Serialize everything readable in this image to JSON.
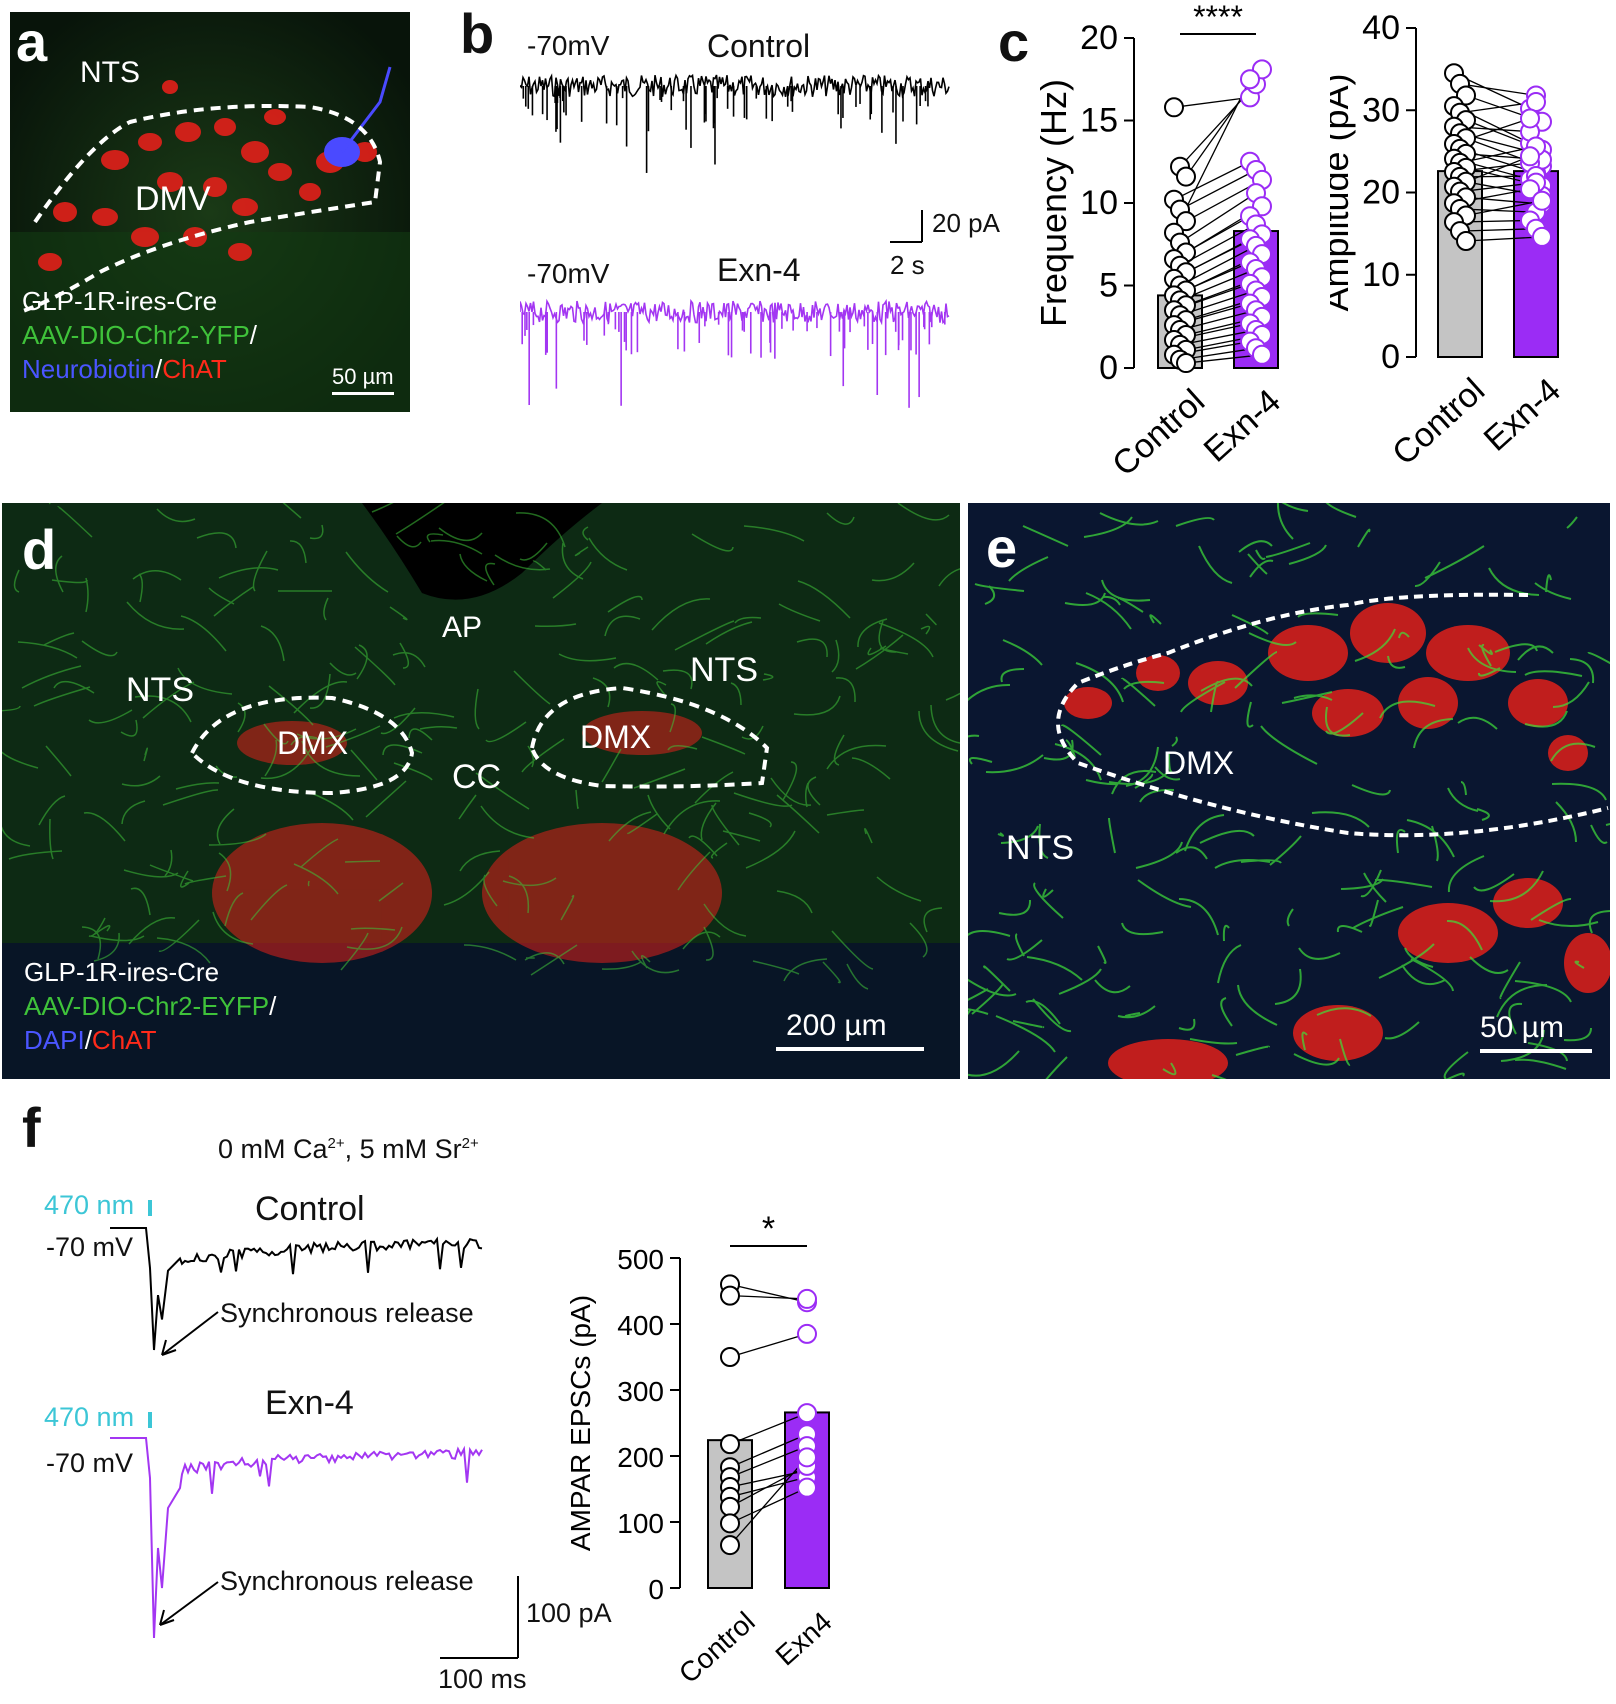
{
  "panels": {
    "a": "a",
    "b": "b",
    "c": "c",
    "d": "d",
    "e": "e",
    "f": "f"
  },
  "panel_a": {
    "labels": {
      "nts": "NTS",
      "dmv": "DMV"
    },
    "legend": {
      "line1": "GLP-1R-ires-Cre",
      "line2": "AAV-DIO-Chr2-YFP",
      "slash": "/",
      "line3a": "Neurobiotin",
      "line3sep": "/",
      "line3b": "ChAT"
    },
    "scalebar": "50 µm"
  },
  "panel_b": {
    "control_title": "Control",
    "exn_title": "Exn-4",
    "holding_control": "-70mV",
    "holding_exn": "-70mV",
    "scale_y": "20 pA",
    "scale_x": "2 s",
    "colors": {
      "control": "#000000",
      "exn": "#a336f2"
    }
  },
  "chart_data": [
    {
      "type": "bar",
      "panel": "c-left",
      "categories": [
        "Control",
        "Exn-4"
      ],
      "values": [
        4.4,
        8.3
      ],
      "ylabel": "Frequency (Hz)",
      "ylim": [
        0,
        20
      ],
      "yticks": [
        "0",
        "5",
        "10",
        "15",
        "20"
      ],
      "significance": "****",
      "paired_points": {
        "control": [
          15.8,
          12.2,
          11.6,
          10.2,
          9.6,
          8.9,
          8.2,
          7.6,
          7.0,
          6.6,
          6.2,
          5.8,
          5.4,
          5.0,
          4.7,
          4.4,
          4.1,
          3.8,
          3.5,
          3.2,
          2.9,
          2.6,
          2.3,
          2.0,
          1.7,
          1.4,
          1.1,
          0.8,
          0.5,
          0.3
        ],
        "exn": [
          16.4,
          17.2,
          18.1,
          12.5,
          12.0,
          11.4,
          17.5,
          10.6,
          9.8,
          9.2,
          8.7,
          8.1,
          7.8,
          7.4,
          6.9,
          6.4,
          6.0,
          5.5,
          5.1,
          4.7,
          4.3,
          3.9,
          3.5,
          3.1,
          2.7,
          2.3,
          2.0,
          1.6,
          1.2,
          0.8
        ]
      },
      "colors": {
        "control": "#c4c4c4",
        "exn": "#9b2cf5"
      }
    },
    {
      "type": "bar",
      "panel": "c-right",
      "categories": [
        "Control",
        "Exn-4"
      ],
      "values": [
        22.6,
        22.6
      ],
      "ylabel": "Amplitude (pA)",
      "ylim": [
        0,
        40
      ],
      "yticks": [
        "0",
        "10",
        "20",
        "30",
        "40"
      ],
      "paired_points": {
        "control": [
          34.5,
          33.2,
          31.8,
          30.5,
          29.7,
          28.8,
          28.0,
          27.2,
          26.6,
          25.9,
          25.3,
          24.7,
          24.1,
          23.6,
          23.0,
          22.5,
          21.9,
          21.3,
          20.7,
          20.1,
          19.4,
          18.7,
          18.0,
          17.2,
          16.4,
          15.3,
          14.1
        ],
        "exn": [
          30.2,
          31.8,
          28.6,
          26.0,
          31.0,
          25.2,
          27.4,
          24.8,
          23.2,
          29.0,
          22.4,
          24.0,
          21.6,
          25.6,
          20.8,
          23.6,
          22.0,
          19.6,
          24.4,
          21.2,
          18.6,
          20.4,
          17.6,
          19.0,
          16.6,
          15.6,
          14.6
        ]
      },
      "colors": {
        "control": "#c4c4c4",
        "exn": "#9b2cf5"
      }
    },
    {
      "type": "bar",
      "panel": "f",
      "categories": [
        "Control",
        "Exn4"
      ],
      "values": [
        224,
        266
      ],
      "ylabel": "AMPAR EPSCs (pA)",
      "ylim": [
        0,
        500
      ],
      "yticks": [
        "0",
        "100",
        "200",
        "300",
        "400",
        "500"
      ],
      "significance": "*",
      "paired_points": {
        "control": [
          460,
          443,
          350,
          218,
          183,
          168,
          153,
          138,
          123,
          98,
          65
        ],
        "exn": [
          433,
          438,
          385,
          265,
          233,
          215,
          178,
          168,
          185,
          152,
          198
        ]
      },
      "colors": {
        "control": "#c4c4c4",
        "exn": "#9b2cf5"
      }
    }
  ],
  "panel_d": {
    "labels": {
      "ap": "AP",
      "nts_left": "NTS",
      "nts_right": "NTS",
      "dmx_left": "DMX",
      "dmx_right": "DMX",
      "cc": "CC"
    },
    "legend": {
      "line1": "GLP-1R-ires-Cre",
      "line2": "AAV-DIO-Chr2-EYFP",
      "slash": "/",
      "line3a": "DAPI",
      "line3sep": "/",
      "line3b": "ChAT"
    },
    "scalebar": "200 µm"
  },
  "panel_e": {
    "labels": {
      "dmx": "DMX",
      "nts": "NTS"
    },
    "scalebar": "50 µm"
  },
  "panel_f": {
    "condition": "0 mM Ca",
    "ca_sup": "2+",
    "condition_mid": ", 5 mM Sr",
    "sr_sup": "2+",
    "stim_control": "470 nm",
    "stim_exn": "470 nm",
    "holding_control": "-70 mV",
    "holding_exn": "-70 mV",
    "control_title": "Control",
    "exn_title": "Exn-4",
    "sync_control": "Synchronous release",
    "sync_exn": "Synchronous release",
    "scale_y": "100 pA",
    "scale_x": "100 ms",
    "colors": {
      "stim": "#3cc6d6",
      "control": "#000000",
      "exn": "#a336f2"
    }
  }
}
